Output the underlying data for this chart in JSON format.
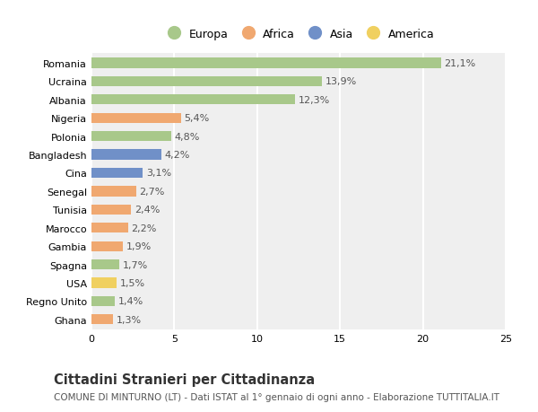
{
  "categories": [
    "Romania",
    "Ucraina",
    "Albania",
    "Nigeria",
    "Polonia",
    "Bangladesh",
    "Cina",
    "Senegal",
    "Tunisia",
    "Marocco",
    "Gambia",
    "Spagna",
    "USA",
    "Regno Unito",
    "Ghana"
  ],
  "values": [
    21.1,
    13.9,
    12.3,
    5.4,
    4.8,
    4.2,
    3.1,
    2.7,
    2.4,
    2.2,
    1.9,
    1.7,
    1.5,
    1.4,
    1.3
  ],
  "labels": [
    "21,1%",
    "13,9%",
    "12,3%",
    "5,4%",
    "4,8%",
    "4,2%",
    "3,1%",
    "2,7%",
    "2,4%",
    "2,2%",
    "1,9%",
    "1,7%",
    "1,5%",
    "1,4%",
    "1,3%"
  ],
  "continents": [
    "Europa",
    "Europa",
    "Europa",
    "Africa",
    "Europa",
    "Asia",
    "Asia",
    "Africa",
    "Africa",
    "Africa",
    "Africa",
    "Europa",
    "America",
    "Europa",
    "Africa"
  ],
  "colors": {
    "Europa": "#a8c88a",
    "Africa": "#f0a870",
    "Asia": "#7090c8",
    "America": "#f0d060"
  },
  "xlim": [
    0,
    25
  ],
  "xticks": [
    0,
    5,
    10,
    15,
    20,
    25
  ],
  "background_color": "#ffffff",
  "plot_background": "#efefef",
  "title": "Cittadini Stranieri per Cittadinanza",
  "subtitle": "COMUNE DI MINTURNO (LT) - Dati ISTAT al 1° gennaio di ogni anno - Elaborazione TUTTITALIA.IT",
  "grid_color": "#ffffff",
  "bar_height": 0.55,
  "label_fontsize": 8.0,
  "ytick_fontsize": 8.0,
  "xtick_fontsize": 8.0,
  "title_fontsize": 10.5,
  "subtitle_fontsize": 7.5,
  "legend_order": [
    "Europa",
    "Africa",
    "Asia",
    "America"
  ],
  "legend_marker_size": 12
}
